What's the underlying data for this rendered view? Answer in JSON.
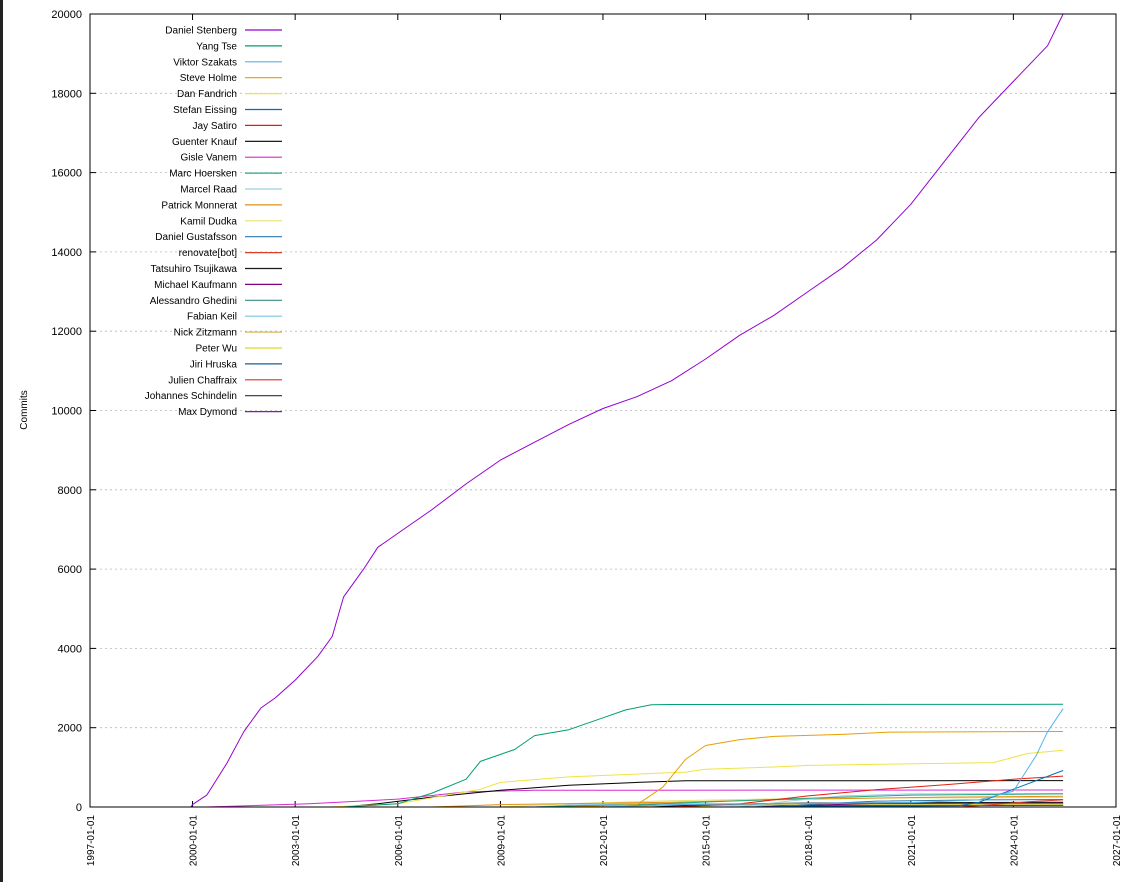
{
  "chart_data": {
    "type": "line",
    "title": "",
    "xlabel": "",
    "ylabel": "Commits",
    "ylim": [
      0,
      20000
    ],
    "xlim": [
      "1997-01-01",
      "2027-01-01"
    ],
    "grid": true,
    "legend_position": "top-left",
    "yticks": [
      0,
      2000,
      4000,
      6000,
      8000,
      10000,
      12000,
      14000,
      16000,
      18000,
      20000
    ],
    "xticks": [
      "1997-01-01",
      "2000-01-01",
      "2003-01-01",
      "2006-01-01",
      "2009-01-01",
      "2012-01-01",
      "2015-01-01",
      "2018-01-01",
      "2021-01-01",
      "2024-01-01",
      "2027-01-01"
    ],
    "series": [
      {
        "name": "Daniel Stenberg",
        "color": "#9400d3",
        "points": [
          [
            "1999-12-15",
            0
          ],
          [
            "2000-01-01",
            60
          ],
          [
            "2000-06-01",
            300
          ],
          [
            "2001-01-01",
            1100
          ],
          [
            "2001-07-01",
            1900
          ],
          [
            "2002-01-01",
            2500
          ],
          [
            "2002-06-01",
            2750
          ],
          [
            "2003-01-01",
            3200
          ],
          [
            "2003-09-01",
            3800
          ],
          [
            "2004-02-01",
            4300
          ],
          [
            "2004-06-01",
            5300
          ],
          [
            "2005-01-01",
            6000
          ],
          [
            "2005-06-01",
            6550
          ],
          [
            "2006-01-01",
            6900
          ],
          [
            "2007-01-01",
            7500
          ],
          [
            "2008-01-01",
            8150
          ],
          [
            "2009-01-01",
            8750
          ],
          [
            "2010-01-01",
            9200
          ],
          [
            "2011-01-01",
            9650
          ],
          [
            "2012-01-01",
            10050
          ],
          [
            "2013-01-01",
            10350
          ],
          [
            "2014-01-01",
            10750
          ],
          [
            "2015-01-01",
            11300
          ],
          [
            "2016-01-01",
            11900
          ],
          [
            "2017-01-01",
            12400
          ],
          [
            "2018-01-01",
            13000
          ],
          [
            "2019-01-01",
            13600
          ],
          [
            "2020-01-01",
            14300
          ],
          [
            "2021-01-01",
            15200
          ],
          [
            "2022-01-01",
            16300
          ],
          [
            "2023-01-01",
            17400
          ],
          [
            "2024-01-01",
            18300
          ],
          [
            "2025-01-01",
            19200
          ],
          [
            "2025-06-15",
            20000
          ]
        ]
      },
      {
        "name": "Yang Tse",
        "color": "#009e73",
        "points": [
          [
            "2004-06-01",
            0
          ],
          [
            "2006-01-01",
            80
          ],
          [
            "2007-01-01",
            350
          ],
          [
            "2008-01-01",
            700
          ],
          [
            "2008-06-01",
            1150
          ],
          [
            "2009-06-01",
            1450
          ],
          [
            "2010-01-01",
            1800
          ],
          [
            "2011-01-01",
            1950
          ],
          [
            "2012-01-01",
            2250
          ],
          [
            "2012-09-01",
            2450
          ],
          [
            "2013-06-01",
            2580
          ],
          [
            "2014-01-01",
            2585
          ],
          [
            "2025-06-15",
            2590
          ]
        ]
      },
      {
        "name": "Viktor Szakats",
        "color": "#56b4e9",
        "points": [
          [
            "2012-01-01",
            0
          ],
          [
            "2014-01-01",
            60
          ],
          [
            "2018-01-01",
            90
          ],
          [
            "2021-01-01",
            110
          ],
          [
            "2023-01-01",
            180
          ],
          [
            "2024-01-01",
            400
          ],
          [
            "2024-09-01",
            1300
          ],
          [
            "2025-01-01",
            1900
          ],
          [
            "2025-06-15",
            2480
          ]
        ]
      },
      {
        "name": "Steve Holme",
        "color": "#e69f00",
        "points": [
          [
            "2011-01-01",
            0
          ],
          [
            "2013-01-01",
            60
          ],
          [
            "2013-10-01",
            500
          ],
          [
            "2014-06-01",
            1200
          ],
          [
            "2015-01-01",
            1550
          ],
          [
            "2016-01-01",
            1700
          ],
          [
            "2017-01-01",
            1780
          ],
          [
            "2019-01-01",
            1830
          ],
          [
            "2020-06-01",
            1890
          ],
          [
            "2025-06-15",
            1905
          ]
        ]
      },
      {
        "name": "Dan Fandrich",
        "color": "#f0e442",
        "points": [
          [
            "2004-01-01",
            0
          ],
          [
            "2006-01-01",
            80
          ],
          [
            "2008-06-01",
            450
          ],
          [
            "2009-01-01",
            620
          ],
          [
            "2011-01-01",
            760
          ],
          [
            "2012-06-01",
            810
          ],
          [
            "2014-06-01",
            880
          ],
          [
            "2015-01-01",
            950
          ],
          [
            "2017-01-01",
            1010
          ],
          [
            "2018-01-01",
            1050
          ],
          [
            "2023-06-01",
            1120
          ],
          [
            "2024-06-01",
            1350
          ],
          [
            "2025-06-15",
            1430
          ]
        ]
      },
      {
        "name": "Stefan Eissing",
        "color": "#0072b2",
        "points": [
          [
            "2015-01-01",
            0
          ],
          [
            "2022-06-01",
            30
          ],
          [
            "2023-01-01",
            120
          ],
          [
            "2024-01-01",
            450
          ],
          [
            "2025-06-15",
            920
          ]
        ]
      },
      {
        "name": "Jay Satiro",
        "color": "#e51e10",
        "points": [
          [
            "2014-01-01",
            0
          ],
          [
            "2016-01-01",
            80
          ],
          [
            "2018-01-01",
            280
          ],
          [
            "2020-01-01",
            440
          ],
          [
            "2022-01-01",
            560
          ],
          [
            "2024-01-01",
            700
          ],
          [
            "2025-06-15",
            780
          ]
        ]
      },
      {
        "name": "Guenter Knauf",
        "color": "#000000",
        "points": [
          [
            "2004-06-01",
            0
          ],
          [
            "2005-06-01",
            80
          ],
          [
            "2007-01-01",
            250
          ],
          [
            "2009-01-01",
            420
          ],
          [
            "2011-01-01",
            550
          ],
          [
            "2013-01-01",
            620
          ],
          [
            "2014-06-01",
            660
          ],
          [
            "2025-06-15",
            665
          ]
        ]
      },
      {
        "name": "Gisle Vanem",
        "color": "#d62ad6",
        "points": [
          [
            "2000-06-01",
            0
          ],
          [
            "2003-06-01",
            80
          ],
          [
            "2006-01-01",
            200
          ],
          [
            "2008-01-01",
            380
          ],
          [
            "2010-01-01",
            420
          ],
          [
            "2025-06-15",
            430
          ]
        ]
      },
      {
        "name": "Marc Hoersken",
        "color": "#24a888",
        "points": [
          [
            "2010-01-01",
            0
          ],
          [
            "2013-01-01",
            60
          ],
          [
            "2016-01-01",
            160
          ],
          [
            "2019-01-01",
            250
          ],
          [
            "2021-01-01",
            300
          ],
          [
            "2025-06-15",
            330
          ]
        ]
      },
      {
        "name": "Marcel Raad",
        "color": "#9ecfe8",
        "points": [
          [
            "2016-01-01",
            0
          ],
          [
            "2017-06-01",
            150
          ],
          [
            "2019-01-01",
            280
          ],
          [
            "2021-01-01",
            330
          ],
          [
            "2025-06-15",
            340
          ]
        ]
      },
      {
        "name": "Patrick Monnerat",
        "color": "#e09010",
        "points": [
          [
            "2007-01-01",
            0
          ],
          [
            "2009-01-01",
            60
          ],
          [
            "2014-01-01",
            120
          ],
          [
            "2018-01-01",
            200
          ],
          [
            "2022-01-01",
            250
          ],
          [
            "2025-06-15",
            270
          ]
        ]
      },
      {
        "name": "Kamil Dudka",
        "color": "#e8e070",
        "points": [
          [
            "2009-01-01",
            0
          ],
          [
            "2011-01-01",
            80
          ],
          [
            "2014-01-01",
            160
          ],
          [
            "2018-01-01",
            220
          ],
          [
            "2025-06-15",
            240
          ]
        ]
      },
      {
        "name": "Daniel Gustafsson",
        "color": "#2878b0",
        "points": [
          [
            "2017-01-01",
            0
          ],
          [
            "2018-06-01",
            80
          ],
          [
            "2020-01-01",
            150
          ],
          [
            "2023-01-01",
            180
          ],
          [
            "2025-06-15",
            190
          ]
        ]
      },
      {
        "name": "renovate[bot]",
        "color": "#d8402a",
        "points": [
          [
            "2022-06-01",
            0
          ],
          [
            "2023-06-01",
            60
          ],
          [
            "2024-06-01",
            130
          ],
          [
            "2025-06-15",
            180
          ]
        ]
      },
      {
        "name": "Tatsuhiro Tsujikawa",
        "color": "#1a1a1a",
        "points": [
          [
            "2013-06-01",
            0
          ],
          [
            "2015-01-01",
            60
          ],
          [
            "2018-01-01",
            100
          ],
          [
            "2025-06-15",
            120
          ]
        ]
      },
      {
        "name": "Michael Kaufmann",
        "color": "#800080",
        "points": [
          [
            "2016-06-01",
            0
          ],
          [
            "2018-01-01",
            40
          ],
          [
            "2020-01-01",
            90
          ],
          [
            "2025-06-15",
            110
          ]
        ]
      },
      {
        "name": "Alessandro Ghedini",
        "color": "#3a8a8a",
        "points": [
          [
            "2014-01-01",
            0
          ],
          [
            "2015-06-01",
            60
          ],
          [
            "2017-01-01",
            90
          ],
          [
            "2025-06-15",
            95
          ]
        ]
      },
      {
        "name": "Fabian Keil",
        "color": "#78c4e8",
        "points": [
          [
            "2010-01-01",
            0
          ],
          [
            "2011-01-01",
            50
          ],
          [
            "2013-01-01",
            80
          ],
          [
            "2025-06-15",
            85
          ]
        ]
      },
      {
        "name": "Nick Zitzmann",
        "color": "#d8b860",
        "points": [
          [
            "2012-01-01",
            0
          ],
          [
            "2014-01-01",
            40
          ],
          [
            "2017-01-01",
            70
          ],
          [
            "2025-06-15",
            75
          ]
        ]
      },
      {
        "name": "Peter Wu",
        "color": "#e8d820",
        "points": [
          [
            "2014-06-01",
            0
          ],
          [
            "2015-06-01",
            40
          ],
          [
            "2017-01-01",
            60
          ],
          [
            "2025-06-15",
            62
          ]
        ]
      },
      {
        "name": "Jiri Hruska",
        "color": "#1060a0",
        "points": [
          [
            "2013-01-01",
            0
          ],
          [
            "2013-06-01",
            50
          ],
          [
            "2025-06-15",
            55
          ]
        ]
      },
      {
        "name": "Julien Chaffraix",
        "color": "#e03030",
        "points": [
          [
            "2010-06-01",
            0
          ],
          [
            "2011-06-01",
            45
          ],
          [
            "2025-06-15",
            50
          ]
        ]
      },
      {
        "name": "Johannes Schindelin",
        "color": "#303030",
        "points": [
          [
            "2016-06-01",
            0
          ],
          [
            "2018-01-01",
            40
          ],
          [
            "2025-06-15",
            45
          ]
        ]
      },
      {
        "name": "Max Dymond",
        "color": "#9a10b8",
        "points": [
          [
            "2017-06-01",
            0
          ],
          [
            "2018-01-01",
            30
          ],
          [
            "2025-06-15",
            40
          ]
        ]
      }
    ]
  }
}
